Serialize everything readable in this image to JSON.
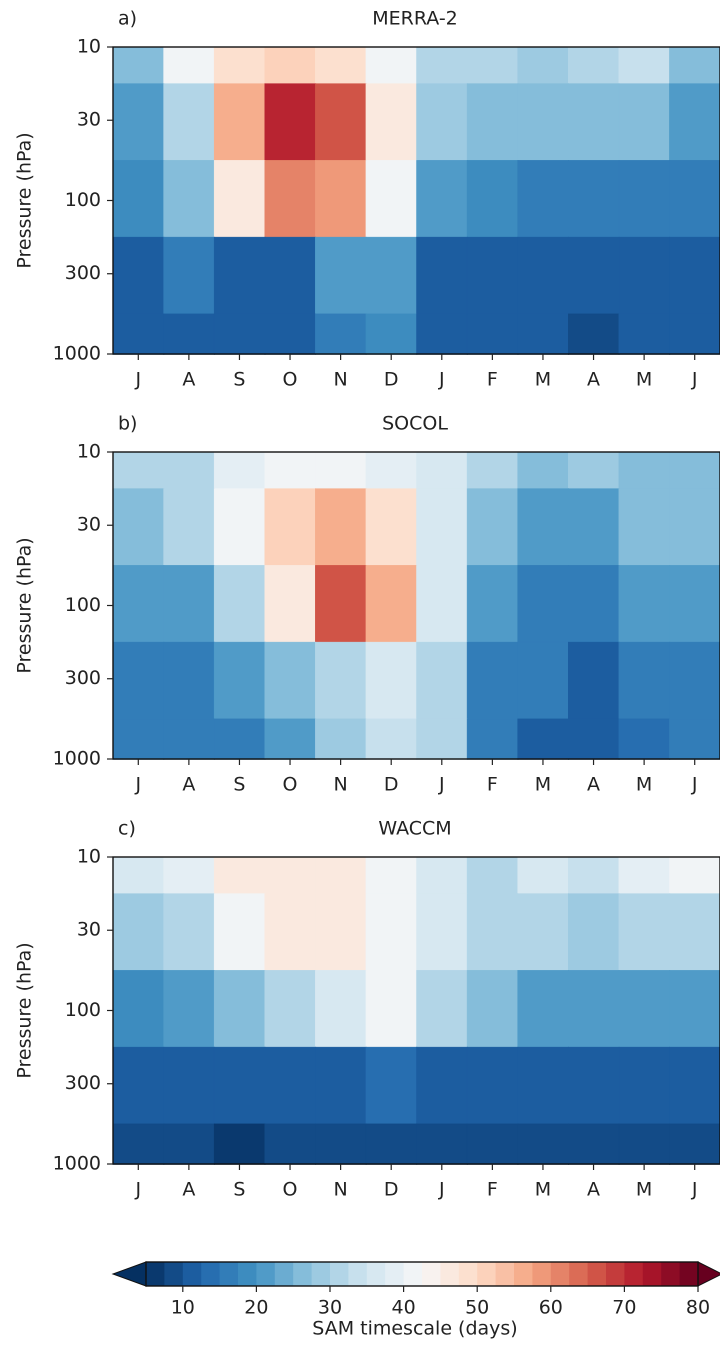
{
  "chart_data": [
    {
      "type": "heatmap",
      "panel_label": "a)",
      "title": "MERRA-2",
      "ylabel": "Pressure (hPa)",
      "log_y": true,
      "categories": [
        "J",
        "A",
        "S",
        "O",
        "N",
        "D",
        "J",
        "F",
        "M",
        "A",
        "M",
        "J"
      ],
      "levels": [
        10,
        30,
        100,
        300,
        1000
      ],
      "ylim": [
        1000,
        10
      ],
      "yticks": [
        10,
        30,
        100,
        300,
        1000
      ],
      "z": [
        [
          25,
          40,
          48,
          50,
          48,
          42,
          32,
          30,
          28,
          30,
          33,
          25
        ],
        [
          22,
          30,
          55,
          72,
          65,
          45,
          28,
          25,
          25,
          25,
          25,
          22
        ],
        [
          18,
          25,
          45,
          60,
          58,
          40,
          22,
          18,
          17,
          17,
          17,
          15
        ],
        [
          12,
          15,
          12,
          12,
          20,
          22,
          12,
          10,
          10,
          10,
          10,
          12
        ],
        [
          12,
          12,
          10,
          10,
          15,
          18,
          12,
          10,
          10,
          8,
          10,
          12
        ]
      ]
    },
    {
      "type": "heatmap",
      "panel_label": "b)",
      "title": "SOCOL",
      "ylabel": "Pressure (hPa)",
      "log_y": true,
      "categories": [
        "J",
        "A",
        "S",
        "O",
        "N",
        "D",
        "J",
        "F",
        "M",
        "A",
        "M",
        "J"
      ],
      "levels": [
        10,
        30,
        100,
        300,
        1000
      ],
      "ylim": [
        1000,
        10
      ],
      "yticks": [
        10,
        30,
        100,
        300,
        1000
      ],
      "z": [
        [
          30,
          32,
          38,
          40,
          40,
          38,
          35,
          30,
          25,
          28,
          25,
          25
        ],
        [
          25,
          30,
          40,
          50,
          55,
          48,
          35,
          25,
          20,
          22,
          25,
          25
        ],
        [
          20,
          22,
          30,
          45,
          65,
          55,
          35,
          20,
          17,
          17,
          20,
          22
        ],
        [
          15,
          17,
          20,
          25,
          32,
          35,
          30,
          17,
          15,
          12,
          15,
          17
        ],
        [
          15,
          15,
          17,
          20,
          28,
          33,
          30,
          17,
          12,
          10,
          13,
          15
        ]
      ]
    },
    {
      "type": "heatmap",
      "panel_label": "c)",
      "title": "WACCM",
      "ylabel": "Pressure (hPa)",
      "log_y": true,
      "categories": [
        "J",
        "A",
        "S",
        "O",
        "N",
        "D",
        "J",
        "F",
        "M",
        "A",
        "M",
        "J"
      ],
      "levels": [
        10,
        30,
        100,
        300,
        1000
      ],
      "ylim": [
        1000,
        10
      ],
      "yticks": [
        10,
        30,
        100,
        300,
        1000
      ],
      "z": [
        [
          35,
          38,
          45,
          45,
          45,
          40,
          35,
          32,
          35,
          33,
          38,
          40
        ],
        [
          28,
          30,
          40,
          45,
          45,
          42,
          35,
          30,
          30,
          28,
          30,
          32
        ],
        [
          18,
          20,
          25,
          30,
          35,
          40,
          32,
          25,
          22,
          20,
          20,
          22
        ],
        [
          10,
          10,
          12,
          12,
          12,
          14,
          12,
          12,
          12,
          12,
          12,
          11
        ],
        [
          8,
          8,
          7,
          8,
          9,
          9,
          9,
          8,
          8,
          8,
          8,
          8
        ]
      ]
    },
    {
      "type": "colorbar",
      "label": "SAM timescale (days)",
      "extend": "both",
      "levels": [
        5,
        7.5,
        10,
        12.5,
        15,
        17.5,
        20,
        22.5,
        25,
        27.5,
        30,
        32.5,
        35,
        37.5,
        40,
        42.5,
        45,
        47.5,
        50,
        52.5,
        55,
        57.5,
        60,
        62.5,
        65,
        67.5,
        70,
        72.5,
        75,
        77.5,
        80
      ],
      "ticks": [
        10,
        20,
        30,
        40,
        50,
        60,
        70,
        80
      ],
      "colormap": [
        "#053061",
        "#2166ac",
        "#4393c3",
        "#92c5de",
        "#d1e5f0",
        "#f7f7f7",
        "#fddbc7",
        "#f4a582",
        "#d6604d",
        "#b2182b",
        "#67001f"
      ]
    }
  ]
}
